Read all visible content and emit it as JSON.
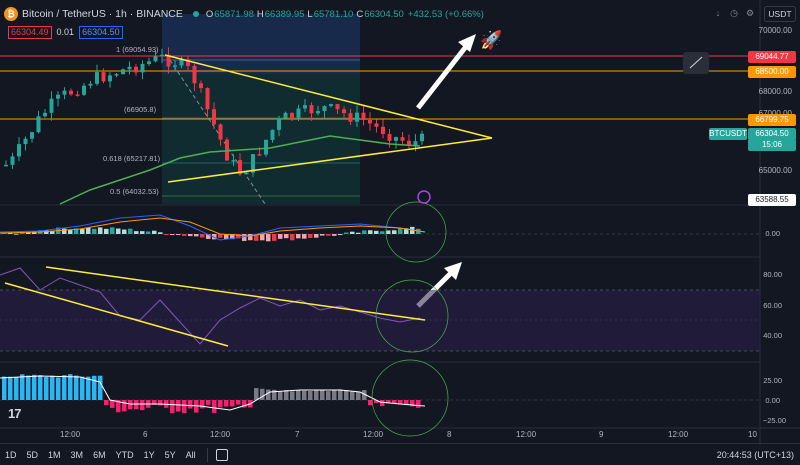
{
  "header": {
    "title": "Bitcoin / TetherUS · 1h · BINANCE",
    "o_label": "O",
    "o_value": "65871.98",
    "h_label": "H",
    "h_value": "66389.95",
    "l_label": "L",
    "l_value": "65781.10",
    "c_label": "C",
    "c_value": "66304.50",
    "change": "+432.53 (+0.66%)",
    "sell_price": "66304.49",
    "spread": "0.01",
    "buy_price": "66304.50",
    "currency": "USDT"
  },
  "price_axis": {
    "ticks": [
      "70000.00",
      "68000.00",
      "67000.00",
      "65000.00"
    ],
    "tags": {
      "resistance_high": "69044.77",
      "resistance_mid": "68500.00",
      "support": "66799.75",
      "symbol": "BTCUSDT",
      "last_price": "66304.50",
      "countdown": "15:06",
      "low_level": "63588.55"
    }
  },
  "fib": {
    "level_1": "1 (69054.93)",
    "level_618": "0.618 (65217.81)",
    "level_786": "(66905.8)",
    "level_05": "0.5 (64032.53)"
  },
  "macd_axis": {
    "zero": "0.00"
  },
  "rsi_axis": {
    "ticks": [
      "80.00",
      "60.00",
      "40.00"
    ]
  },
  "mom_axis": {
    "ticks": [
      "25.00",
      "0.00",
      "−25.00"
    ]
  },
  "time_axis": [
    "12:00",
    "6",
    "12:00",
    "7",
    "12:00",
    "8",
    "12:00",
    "9",
    "12:00",
    "10"
  ],
  "bottom_bar": {
    "timeframes": [
      "1D",
      "5D",
      "1M",
      "3M",
      "6M",
      "YTD",
      "1Y",
      "5Y",
      "All"
    ],
    "clock": "20:44:53 (UTC+13)"
  },
  "colors": {
    "bull": "#26a69a",
    "bear": "#f23645",
    "triangle": "#ffeb3b",
    "orange": "#ff9800",
    "red": "#f23645",
    "ma": "#4caf50",
    "rsi": "#7e57c2"
  }
}
